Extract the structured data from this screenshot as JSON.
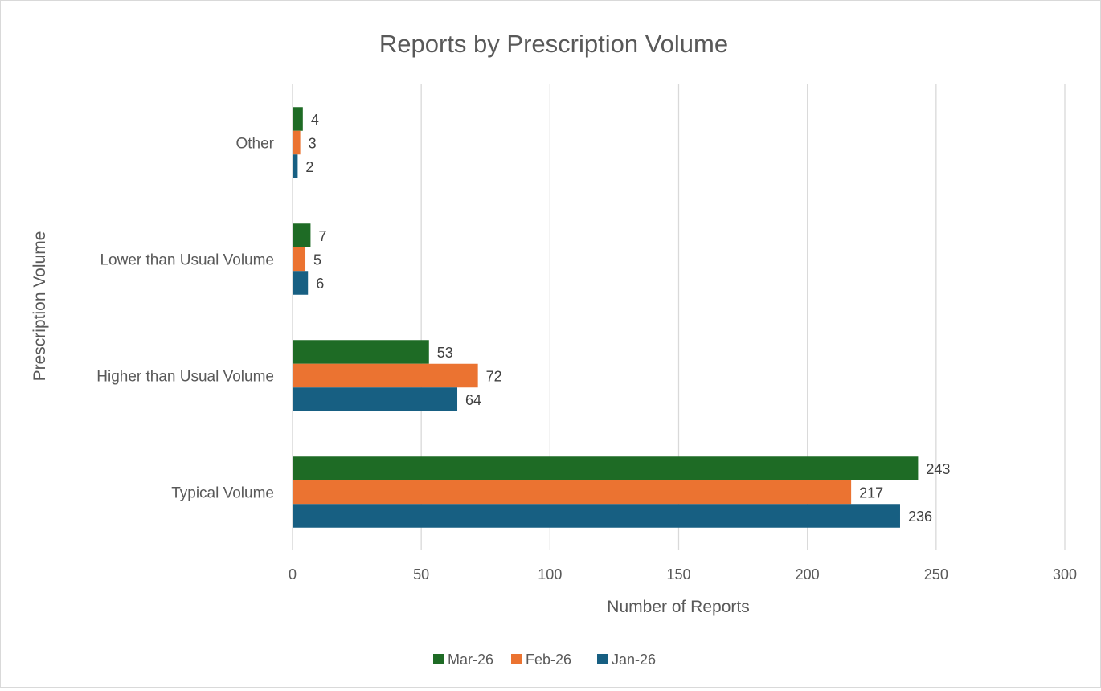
{
  "chart_data": {
    "type": "bar",
    "orientation": "horizontal",
    "title": "Reports by Prescription Volume",
    "xlabel": "Number of Reports",
    "ylabel": "Prescription Volume",
    "categories": [
      "Other",
      "Lower than Usual Volume",
      "Higher than Usual Volume",
      "Typical Volume"
    ],
    "series": [
      {
        "name": "Mar-26",
        "color": "#1e6b25",
        "values": [
          4,
          7,
          53,
          243
        ]
      },
      {
        "name": "Feb-26",
        "color": "#eb7331",
        "values": [
          3,
          5,
          72,
          217
        ]
      },
      {
        "name": "Jan-26",
        "color": "#175f82",
        "values": [
          2,
          6,
          64,
          236
        ]
      }
    ],
    "xlim": [
      0,
      300
    ],
    "xticks": [
      "0",
      "50",
      "100",
      "150",
      "200",
      "250",
      "300"
    ],
    "grid": "vertical",
    "data_labels": true,
    "legend_position": "bottom"
  }
}
